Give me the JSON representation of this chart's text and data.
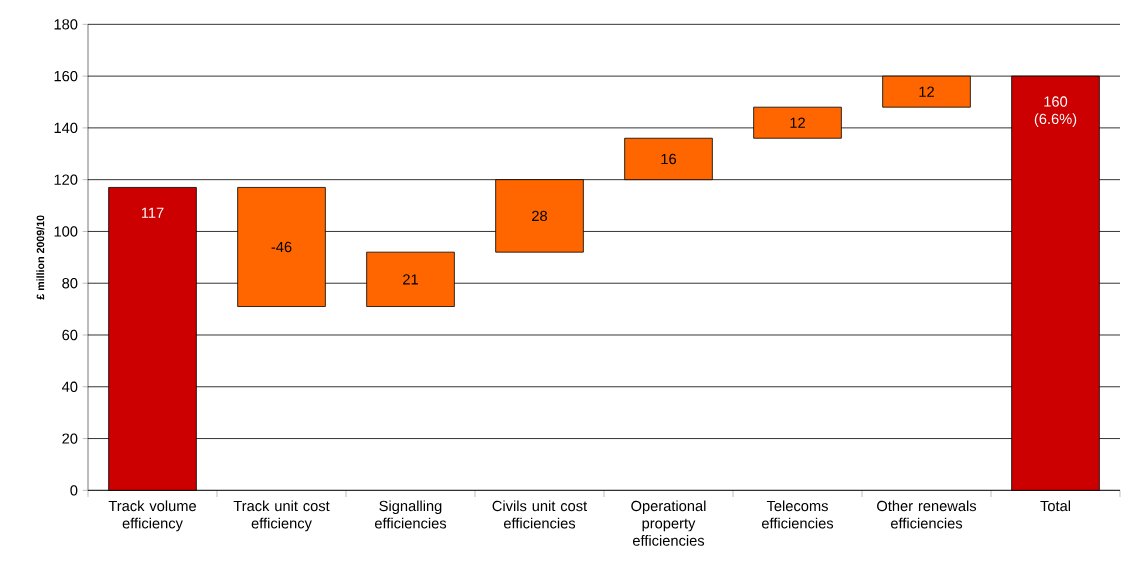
{
  "chart_data": {
    "type": "bar",
    "ylabel": "£ million 2009/10",
    "categories": [
      "Track volume efficiency",
      "Track unit cost efficiency",
      "Signalling efficiencies",
      "Civils unit cost efficiencies",
      "Operational property efficiencies",
      "Telecoms efficiencies",
      "Other renewals efficiencies",
      "Total"
    ],
    "values": [
      117,
      -46,
      21,
      28,
      16,
      12,
      12,
      160
    ],
    "base": [
      0,
      117,
      71,
      92,
      120,
      136,
      148,
      0
    ],
    "colors": [
      "#cc0000",
      "#ff6600",
      "#ff6600",
      "#ff6600",
      "#ff6600",
      "#ff6600",
      "#ff6600",
      "#cc0000"
    ],
    "value_labels": [
      "117",
      "-46",
      "21",
      "28",
      "16",
      "12",
      "12",
      "160 (6.6%)"
    ],
    "ylim": [
      0,
      180
    ],
    "yticks": [
      0,
      20,
      40,
      60,
      80,
      100,
      120,
      140,
      160,
      180
    ],
    "grid": "y"
  }
}
